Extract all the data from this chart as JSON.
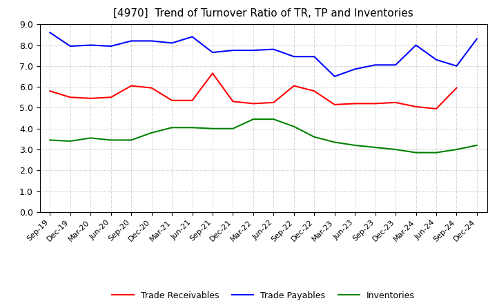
{
  "title": "[4970]  Trend of Turnover Ratio of TR, TP and Inventories",
  "labels": [
    "Sep-19",
    "Dec-19",
    "Mar-20",
    "Jun-20",
    "Sep-20",
    "Dec-20",
    "Mar-21",
    "Jun-21",
    "Sep-21",
    "Dec-21",
    "Mar-22",
    "Jun-22",
    "Sep-22",
    "Dec-22",
    "Mar-23",
    "Jun-23",
    "Sep-23",
    "Dec-23",
    "Mar-24",
    "Jun-24",
    "Sep-24",
    "Dec-24"
  ],
  "trade_receivables": [
    5.8,
    5.5,
    5.45,
    5.5,
    6.05,
    5.95,
    5.35,
    5.35,
    6.65,
    5.3,
    5.2,
    5.25,
    6.05,
    5.8,
    5.15,
    5.2,
    5.2,
    5.25,
    5.05,
    4.95,
    5.95,
    null
  ],
  "trade_payables": [
    8.6,
    7.95,
    8.0,
    7.95,
    8.2,
    8.2,
    8.1,
    8.4,
    7.65,
    7.75,
    7.75,
    7.8,
    7.45,
    7.45,
    6.5,
    6.85,
    7.05,
    7.05,
    8.0,
    7.3,
    7.0,
    8.3
  ],
  "inventories": [
    3.45,
    3.4,
    3.55,
    3.45,
    3.45,
    3.8,
    4.05,
    4.05,
    4.0,
    4.0,
    4.45,
    4.45,
    4.1,
    3.6,
    3.35,
    3.2,
    3.1,
    3.0,
    2.85,
    2.85,
    3.0,
    3.2
  ],
  "ylim": [
    0.0,
    9.0
  ],
  "yticks": [
    0.0,
    1.0,
    2.0,
    3.0,
    4.0,
    5.0,
    6.0,
    7.0,
    8.0,
    9.0
  ],
  "tr_color": "#FF0000",
  "tp_color": "#0000FF",
  "inv_color": "#008000",
  "bg_color": "#FFFFFF",
  "grid_color": "#AAAAAA",
  "title_fontsize": 11,
  "tick_fontsize": 8,
  "legend_fontsize": 9,
  "legend_labels": [
    "Trade Receivables",
    "Trade Payables",
    "Inventories"
  ]
}
